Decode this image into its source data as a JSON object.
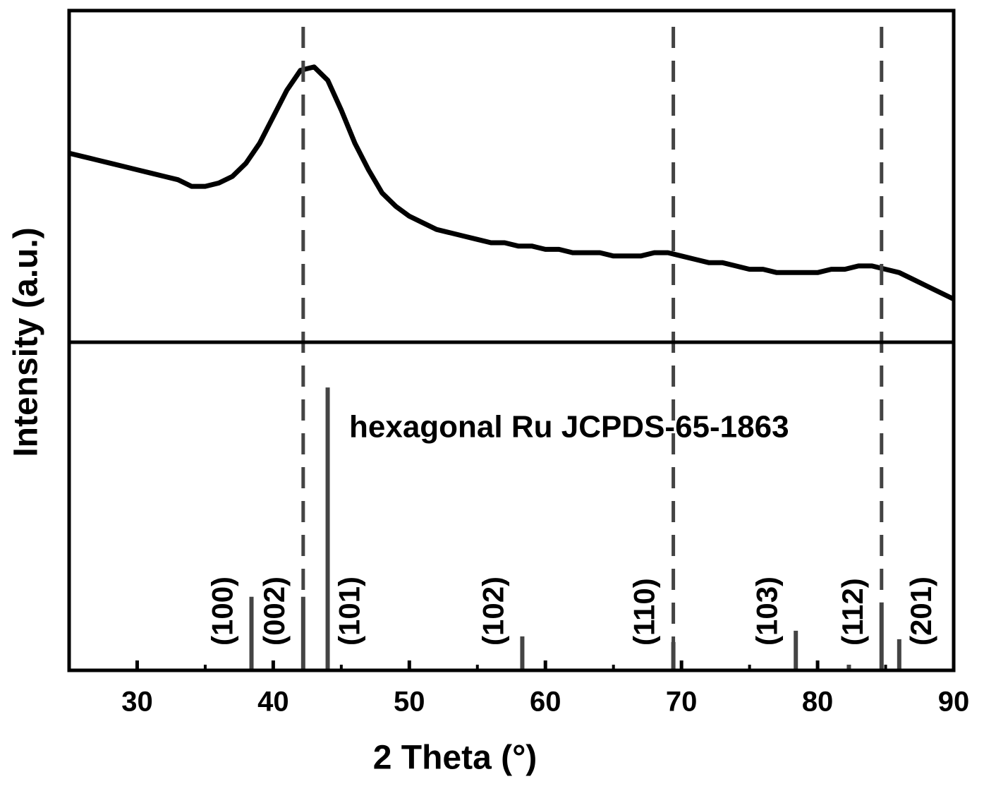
{
  "chart_data": [
    {
      "type": "line",
      "y_label": "Intensity (a.u.)",
      "x": [
        25,
        26,
        27,
        28,
        29,
        30,
        31,
        32,
        33,
        34,
        35,
        36,
        37,
        38,
        39,
        40,
        41,
        42,
        43,
        44,
        45,
        46,
        47,
        48,
        49,
        50,
        51,
        52,
        53,
        54,
        55,
        56,
        57,
        58,
        59,
        60,
        61,
        62,
        63,
        64,
        65,
        66,
        67,
        68,
        69,
        70,
        71,
        72,
        73,
        74,
        75,
        76,
        77,
        78,
        79,
        80,
        81,
        82,
        83,
        84,
        85,
        86,
        87,
        88,
        89,
        90
      ],
      "series": [
        {
          "color": "#000000",
          "values": [
            57,
            56,
            55,
            54,
            53,
            52,
            51,
            50,
            49,
            47,
            47,
            48,
            50,
            54,
            60,
            68,
            76,
            82,
            83,
            79,
            70,
            60,
            52,
            45,
            41,
            38,
            36,
            34,
            33,
            32,
            31,
            30,
            30,
            29,
            29,
            28,
            28,
            27,
            27,
            27,
            26,
            26,
            26,
            27,
            27,
            26,
            25,
            24,
            24,
            23,
            22,
            22,
            21,
            21,
            21,
            21,
            22,
            22,
            23,
            23,
            22,
            21,
            19,
            17,
            15,
            13
          ]
        }
      ],
      "xlim": [
        25,
        90
      ],
      "ylim": [
        0,
        100
      ],
      "dashed_lines": [
        42.2,
        69.4,
        84.7
      ],
      "dashed_color": "#444444"
    },
    {
      "type": "stick",
      "title": "hexagonal Ru JCPDS-65-1863",
      "x_label": "2 Theta (°)",
      "x": [
        38.4,
        42.2,
        44.0,
        58.3,
        69.4,
        78.4,
        82.3,
        84.7,
        86.0
      ],
      "values": [
        26,
        26,
        100,
        12,
        10,
        14,
        2,
        24,
        11
      ],
      "labels": [
        "(100)",
        "(002)",
        "(101)",
        "(102)",
        "(110)",
        "(103)",
        null,
        "(112)",
        "(201)"
      ],
      "color": "#444444",
      "xlim": [
        25,
        90
      ],
      "ylim": [
        0,
        116
      ],
      "xticks": [
        30,
        40,
        50,
        60,
        70,
        80,
        90
      ],
      "xminorticks": [
        35,
        45,
        55,
        65,
        75,
        85
      ]
    }
  ]
}
